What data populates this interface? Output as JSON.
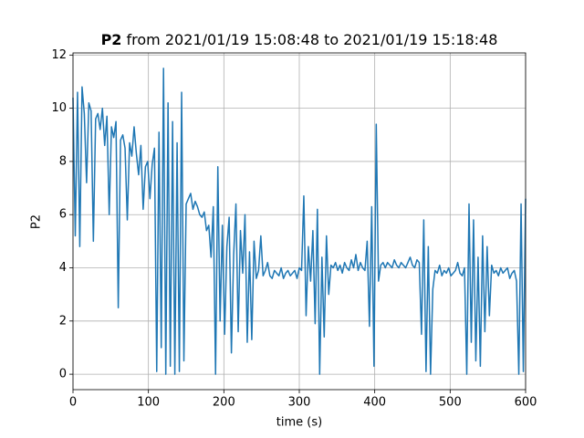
{
  "chart_data": {
    "type": "line",
    "title": "P2",
    "title_rest": "from 2021/01/19 15:08:48 to 2021/01/19 15:18:48",
    "xlabel": "time (s)",
    "ylabel": "P2",
    "xlim": [
      0,
      600
    ],
    "ylim": [
      -0.58,
      12.08
    ],
    "xticks": [
      0,
      100,
      200,
      300,
      400,
      500,
      600
    ],
    "yticks": [
      0,
      2,
      4,
      6,
      8,
      10,
      12
    ],
    "grid": true,
    "x": [
      0,
      3,
      6,
      9,
      12,
      15,
      18,
      21,
      24,
      27,
      30,
      33,
      36,
      39,
      42,
      45,
      48,
      51,
      54,
      57,
      60,
      63,
      66,
      69,
      72,
      75,
      78,
      81,
      84,
      87,
      90,
      93,
      96,
      99,
      102,
      105,
      108,
      111,
      114,
      117,
      120,
      123,
      126,
      129,
      132,
      135,
      138,
      141,
      144,
      147,
      150,
      153,
      156,
      159,
      162,
      165,
      168,
      171,
      174,
      177,
      180,
      183,
      186,
      189,
      192,
      195,
      198,
      201,
      204,
      207,
      210,
      213,
      216,
      219,
      222,
      225,
      228,
      231,
      234,
      237,
      240,
      243,
      246,
      249,
      252,
      255,
      258,
      261,
      264,
      267,
      270,
      273,
      276,
      279,
      282,
      285,
      288,
      291,
      294,
      297,
      300,
      303,
      306,
      309,
      312,
      315,
      318,
      321,
      324,
      327,
      330,
      333,
      336,
      339,
      342,
      345,
      348,
      351,
      354,
      357,
      360,
      363,
      366,
      369,
      372,
      375,
      378,
      381,
      384,
      387,
      390,
      393,
      396,
      399,
      402,
      405,
      408,
      411,
      414,
      417,
      420,
      423,
      426,
      429,
      432,
      435,
      438,
      441,
      444,
      447,
      450,
      453,
      456,
      459,
      462,
      465,
      468,
      471,
      474,
      477,
      480,
      483,
      486,
      489,
      492,
      495,
      498,
      501,
      504,
      507,
      510,
      513,
      516,
      519,
      522,
      525,
      528,
      531,
      534,
      537,
      540,
      543,
      546,
      549,
      552,
      555,
      558,
      561,
      564,
      567,
      570,
      573,
      576,
      579,
      582,
      585,
      588,
      591,
      594,
      597,
      600
    ],
    "series": [
      {
        "name": "P2",
        "color": "#1f77b4",
        "values": [
          10.4,
          5.2,
          10.6,
          4.8,
          10.8,
          9.8,
          7.2,
          10.2,
          9.9,
          5.0,
          9.6,
          9.8,
          9.2,
          10.0,
          8.6,
          9.7,
          6.0,
          9.3,
          8.9,
          9.5,
          2.5,
          8.8,
          9.0,
          8.5,
          5.8,
          8.7,
          8.2,
          9.3,
          8.3,
          7.5,
          8.6,
          6.2,
          7.8,
          8.0,
          6.6,
          7.9,
          8.5,
          0.1,
          9.1,
          1.0,
          11.5,
          0.0,
          10.2,
          0.3,
          9.5,
          0.0,
          8.7,
          0.1,
          10.6,
          0.5,
          6.4,
          6.6,
          6.8,
          6.2,
          6.5,
          6.3,
          6.0,
          5.9,
          6.1,
          5.4,
          5.6,
          4.4,
          6.3,
          0.0,
          7.8,
          2.0,
          5.6,
          1.5,
          4.8,
          5.9,
          0.8,
          4.5,
          6.4,
          1.6,
          5.4,
          3.8,
          6.0,
          1.2,
          4.6,
          1.3,
          5.0,
          3.6,
          3.9,
          5.2,
          3.7,
          3.9,
          4.2,
          3.7,
          3.6,
          3.9,
          3.8,
          3.7,
          4.0,
          3.6,
          3.8,
          3.9,
          3.7,
          3.8,
          3.9,
          3.6,
          4.0,
          3.9,
          6.7,
          2.2,
          4.8,
          3.5,
          5.4,
          1.9,
          6.2,
          0.0,
          4.4,
          1.4,
          5.2,
          3.0,
          4.1,
          4.0,
          4.2,
          3.9,
          4.1,
          3.8,
          4.2,
          4.0,
          3.9,
          4.3,
          4.0,
          4.5,
          3.9,
          4.2,
          4.0,
          3.9,
          5.0,
          1.8,
          6.3,
          0.3,
          9.4,
          3.5,
          4.1,
          4.2,
          4.0,
          4.2,
          4.1,
          4.0,
          4.3,
          4.1,
          4.0,
          4.2,
          4.1,
          4.0,
          4.2,
          4.4,
          4.1,
          4.0,
          4.3,
          4.2,
          1.5,
          5.8,
          0.1,
          4.8,
          0.0,
          3.2,
          3.9,
          3.8,
          4.1,
          3.7,
          3.9,
          3.8,
          4.0,
          3.7,
          3.8,
          3.9,
          4.2,
          3.8,
          3.7,
          4.0,
          0.0,
          6.4,
          1.2,
          5.8,
          0.5,
          4.4,
          0.3,
          5.2,
          1.6,
          4.8,
          2.2,
          4.1,
          3.8,
          3.9,
          3.7,
          4.0,
          3.8,
          3.9,
          4.0,
          3.6,
          3.8,
          3.9,
          3.5,
          0.0,
          6.4,
          0.1,
          6.6
        ]
      }
    ]
  }
}
